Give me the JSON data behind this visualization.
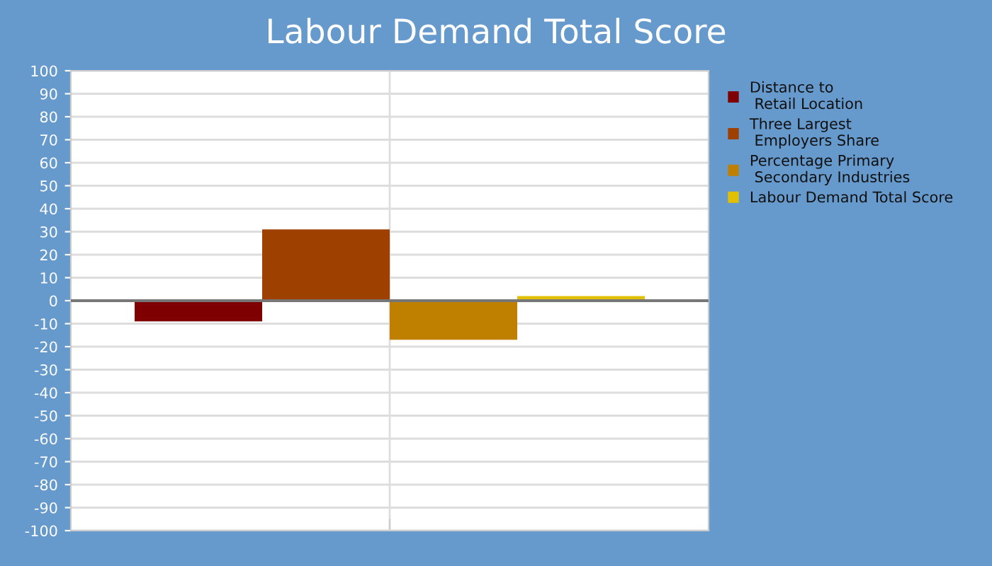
{
  "chart_data": {
    "type": "bar",
    "title": "Labour Demand Total Score",
    "categories": [
      null
    ],
    "series": [
      {
        "name": "Distance to\n Retail Location",
        "color": "#7f0000",
        "values": [
          -9
        ]
      },
      {
        "name": "Three Largest\n Employers Share",
        "color": "#9e4100",
        "values": [
          31
        ]
      },
      {
        "name": "Percentage Primary\n Secondary Industries",
        "color": "#bf8000",
        "values": [
          -17
        ]
      },
      {
        "name": "Labour Demand Total Score",
        "color": "#e0c000",
        "values": [
          2
        ]
      }
    ],
    "ylim": [
      -100,
      100
    ],
    "yticks": [
      -100,
      -90,
      -80,
      -70,
      -60,
      -50,
      -40,
      -30,
      -20,
      -10,
      0,
      10,
      20,
      30,
      40,
      50,
      60,
      70,
      80,
      90,
      100
    ],
    "ref_lines": [
      {
        "axis": "y",
        "value": 0,
        "color": "#777777"
      }
    ],
    "grid": true,
    "legend": "right"
  }
}
